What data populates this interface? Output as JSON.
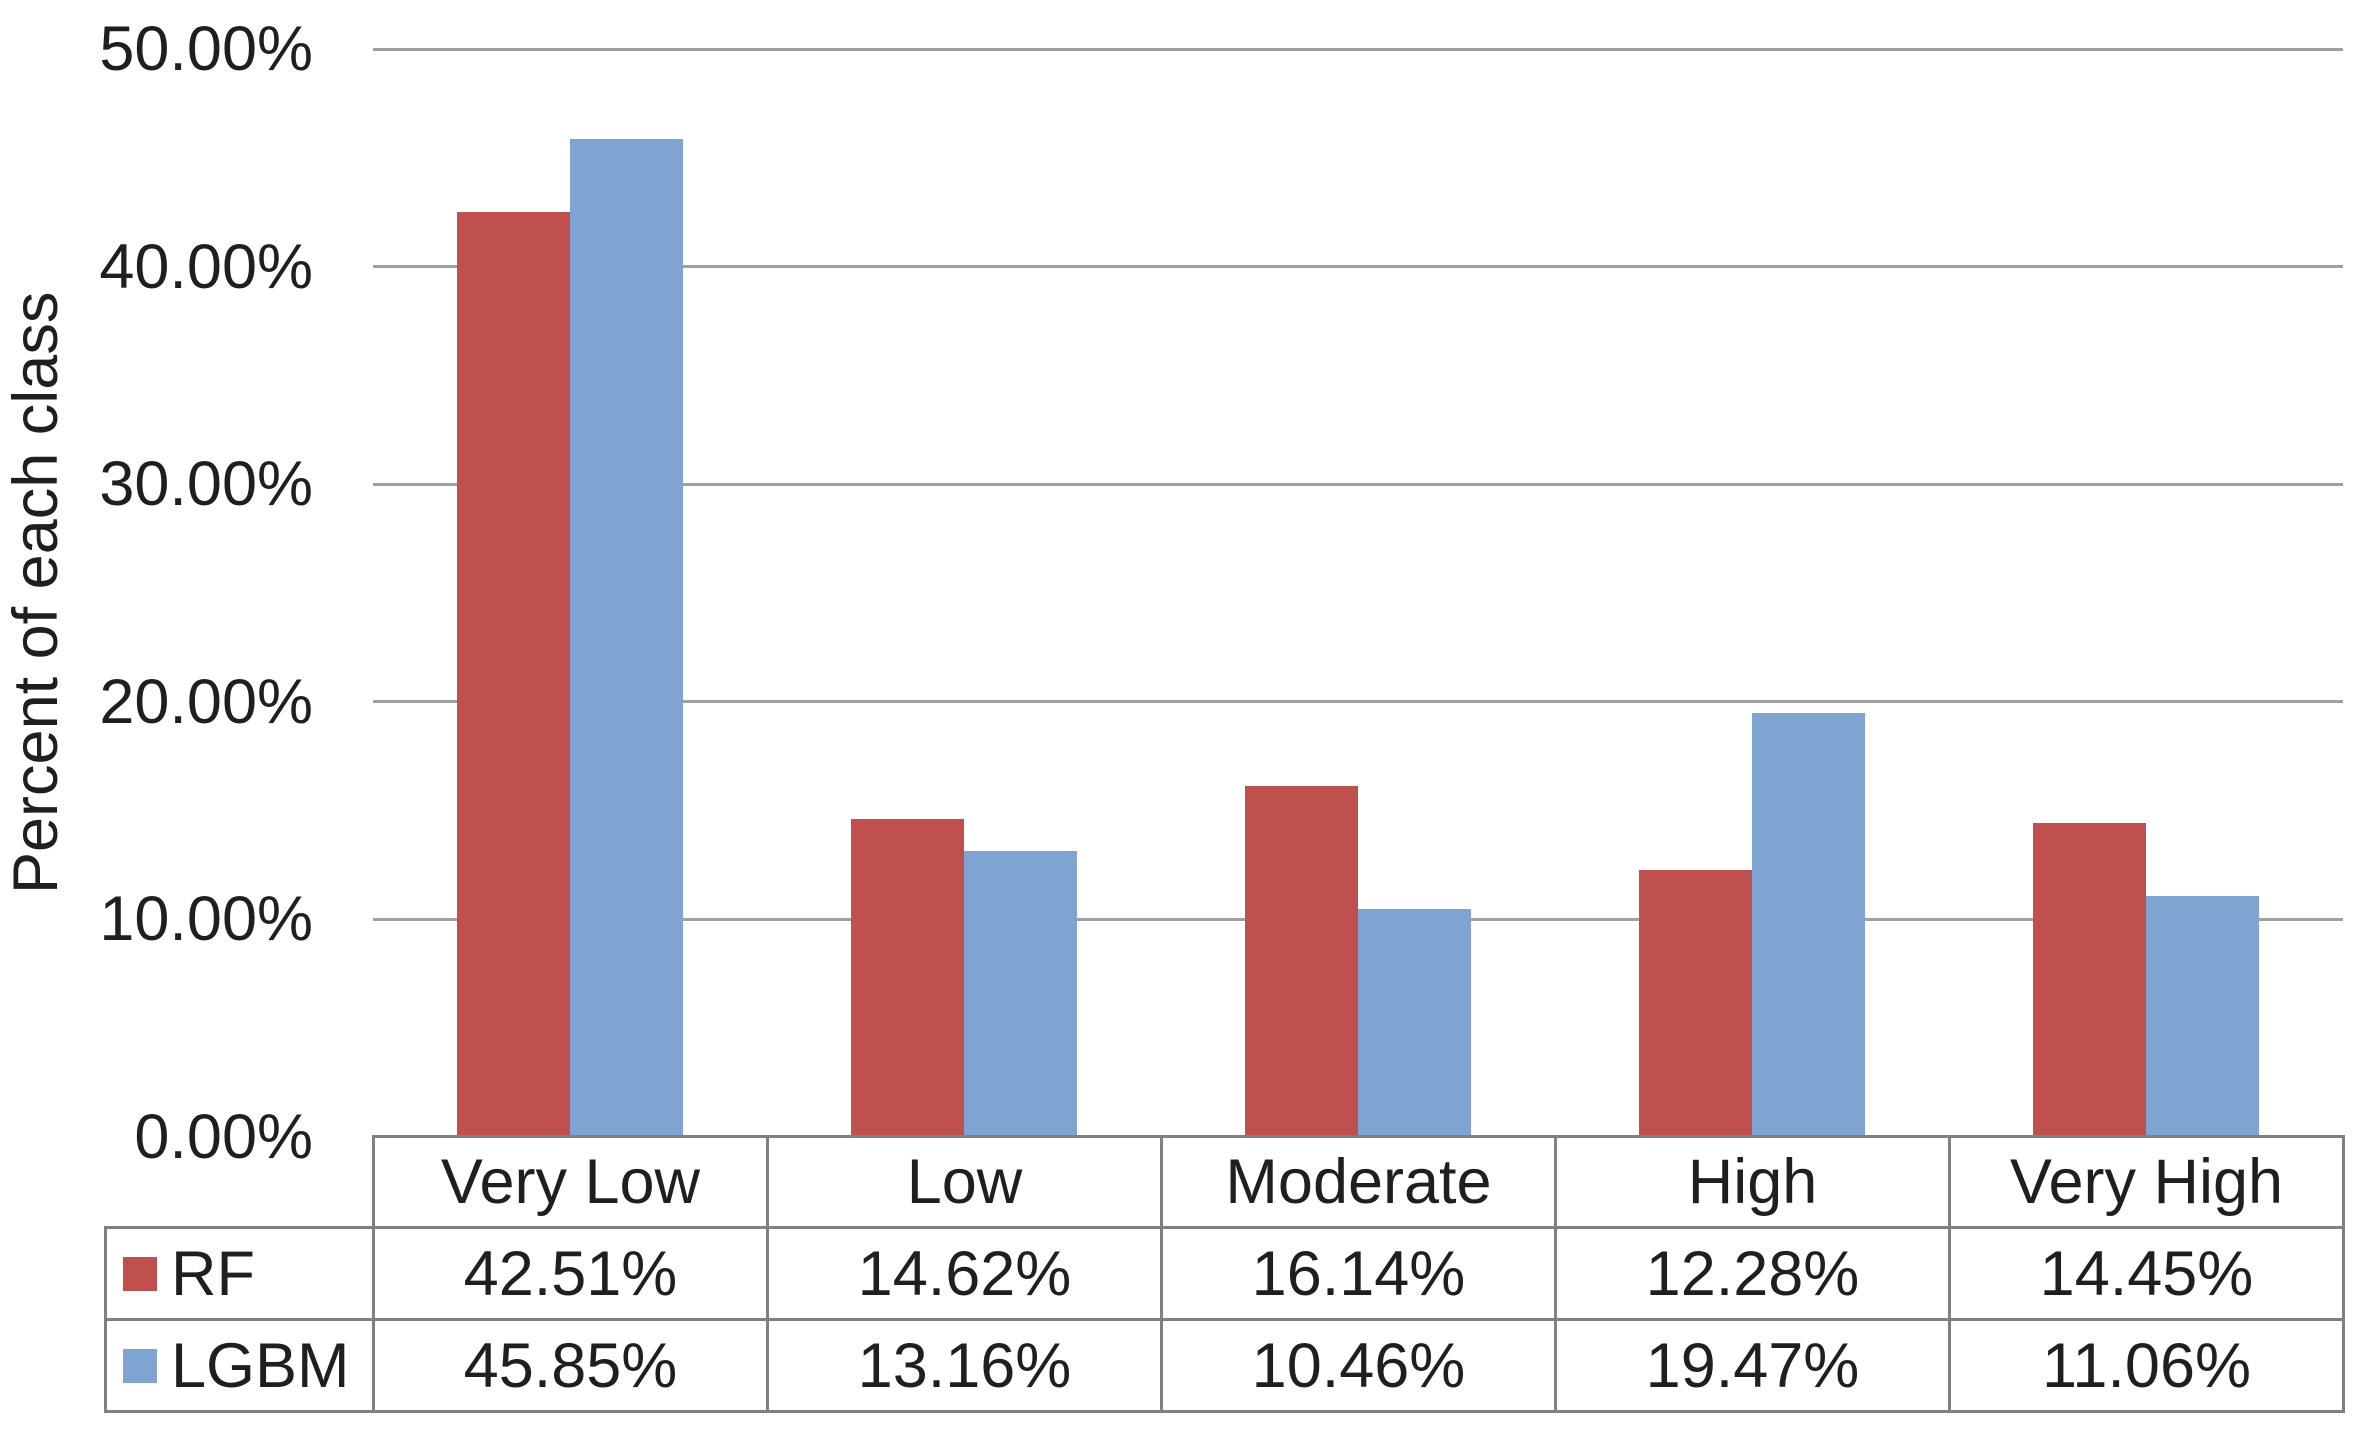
{
  "chart_data": {
    "type": "bar",
    "categories": [
      "Very Low",
      "Low",
      "Moderate",
      "High",
      "Very High"
    ],
    "series": [
      {
        "name": "RF",
        "color": "#c0504d",
        "values": [
          42.51,
          14.62,
          16.14,
          12.28,
          14.45
        ]
      },
      {
        "name": "LGBM",
        "color": "#7fa4d2",
        "values": [
          45.85,
          13.16,
          10.46,
          19.47,
          11.06
        ]
      }
    ],
    "title": "",
    "xlabel": "",
    "ylabel": "Percent of each class",
    "ylim": [
      0,
      50
    ],
    "ytick_step": 10,
    "ytick_labels": [
      "50.00%",
      "40.00%",
      "30.00%",
      "20.00%",
      "10.00%",
      "0.00%"
    ],
    "grid": true,
    "gridline_color": "#a0a0a0",
    "legend_position": "data-table-left"
  },
  "table": {
    "rows": [
      {
        "label": "RF",
        "values": [
          "42.51%",
          "14.62%",
          "16.14%",
          "12.28%",
          "14.45%"
        ]
      },
      {
        "label": "LGBM",
        "values": [
          "45.85%",
          "13.16%",
          "10.46%",
          "19.47%",
          "11.06%"
        ]
      }
    ]
  }
}
